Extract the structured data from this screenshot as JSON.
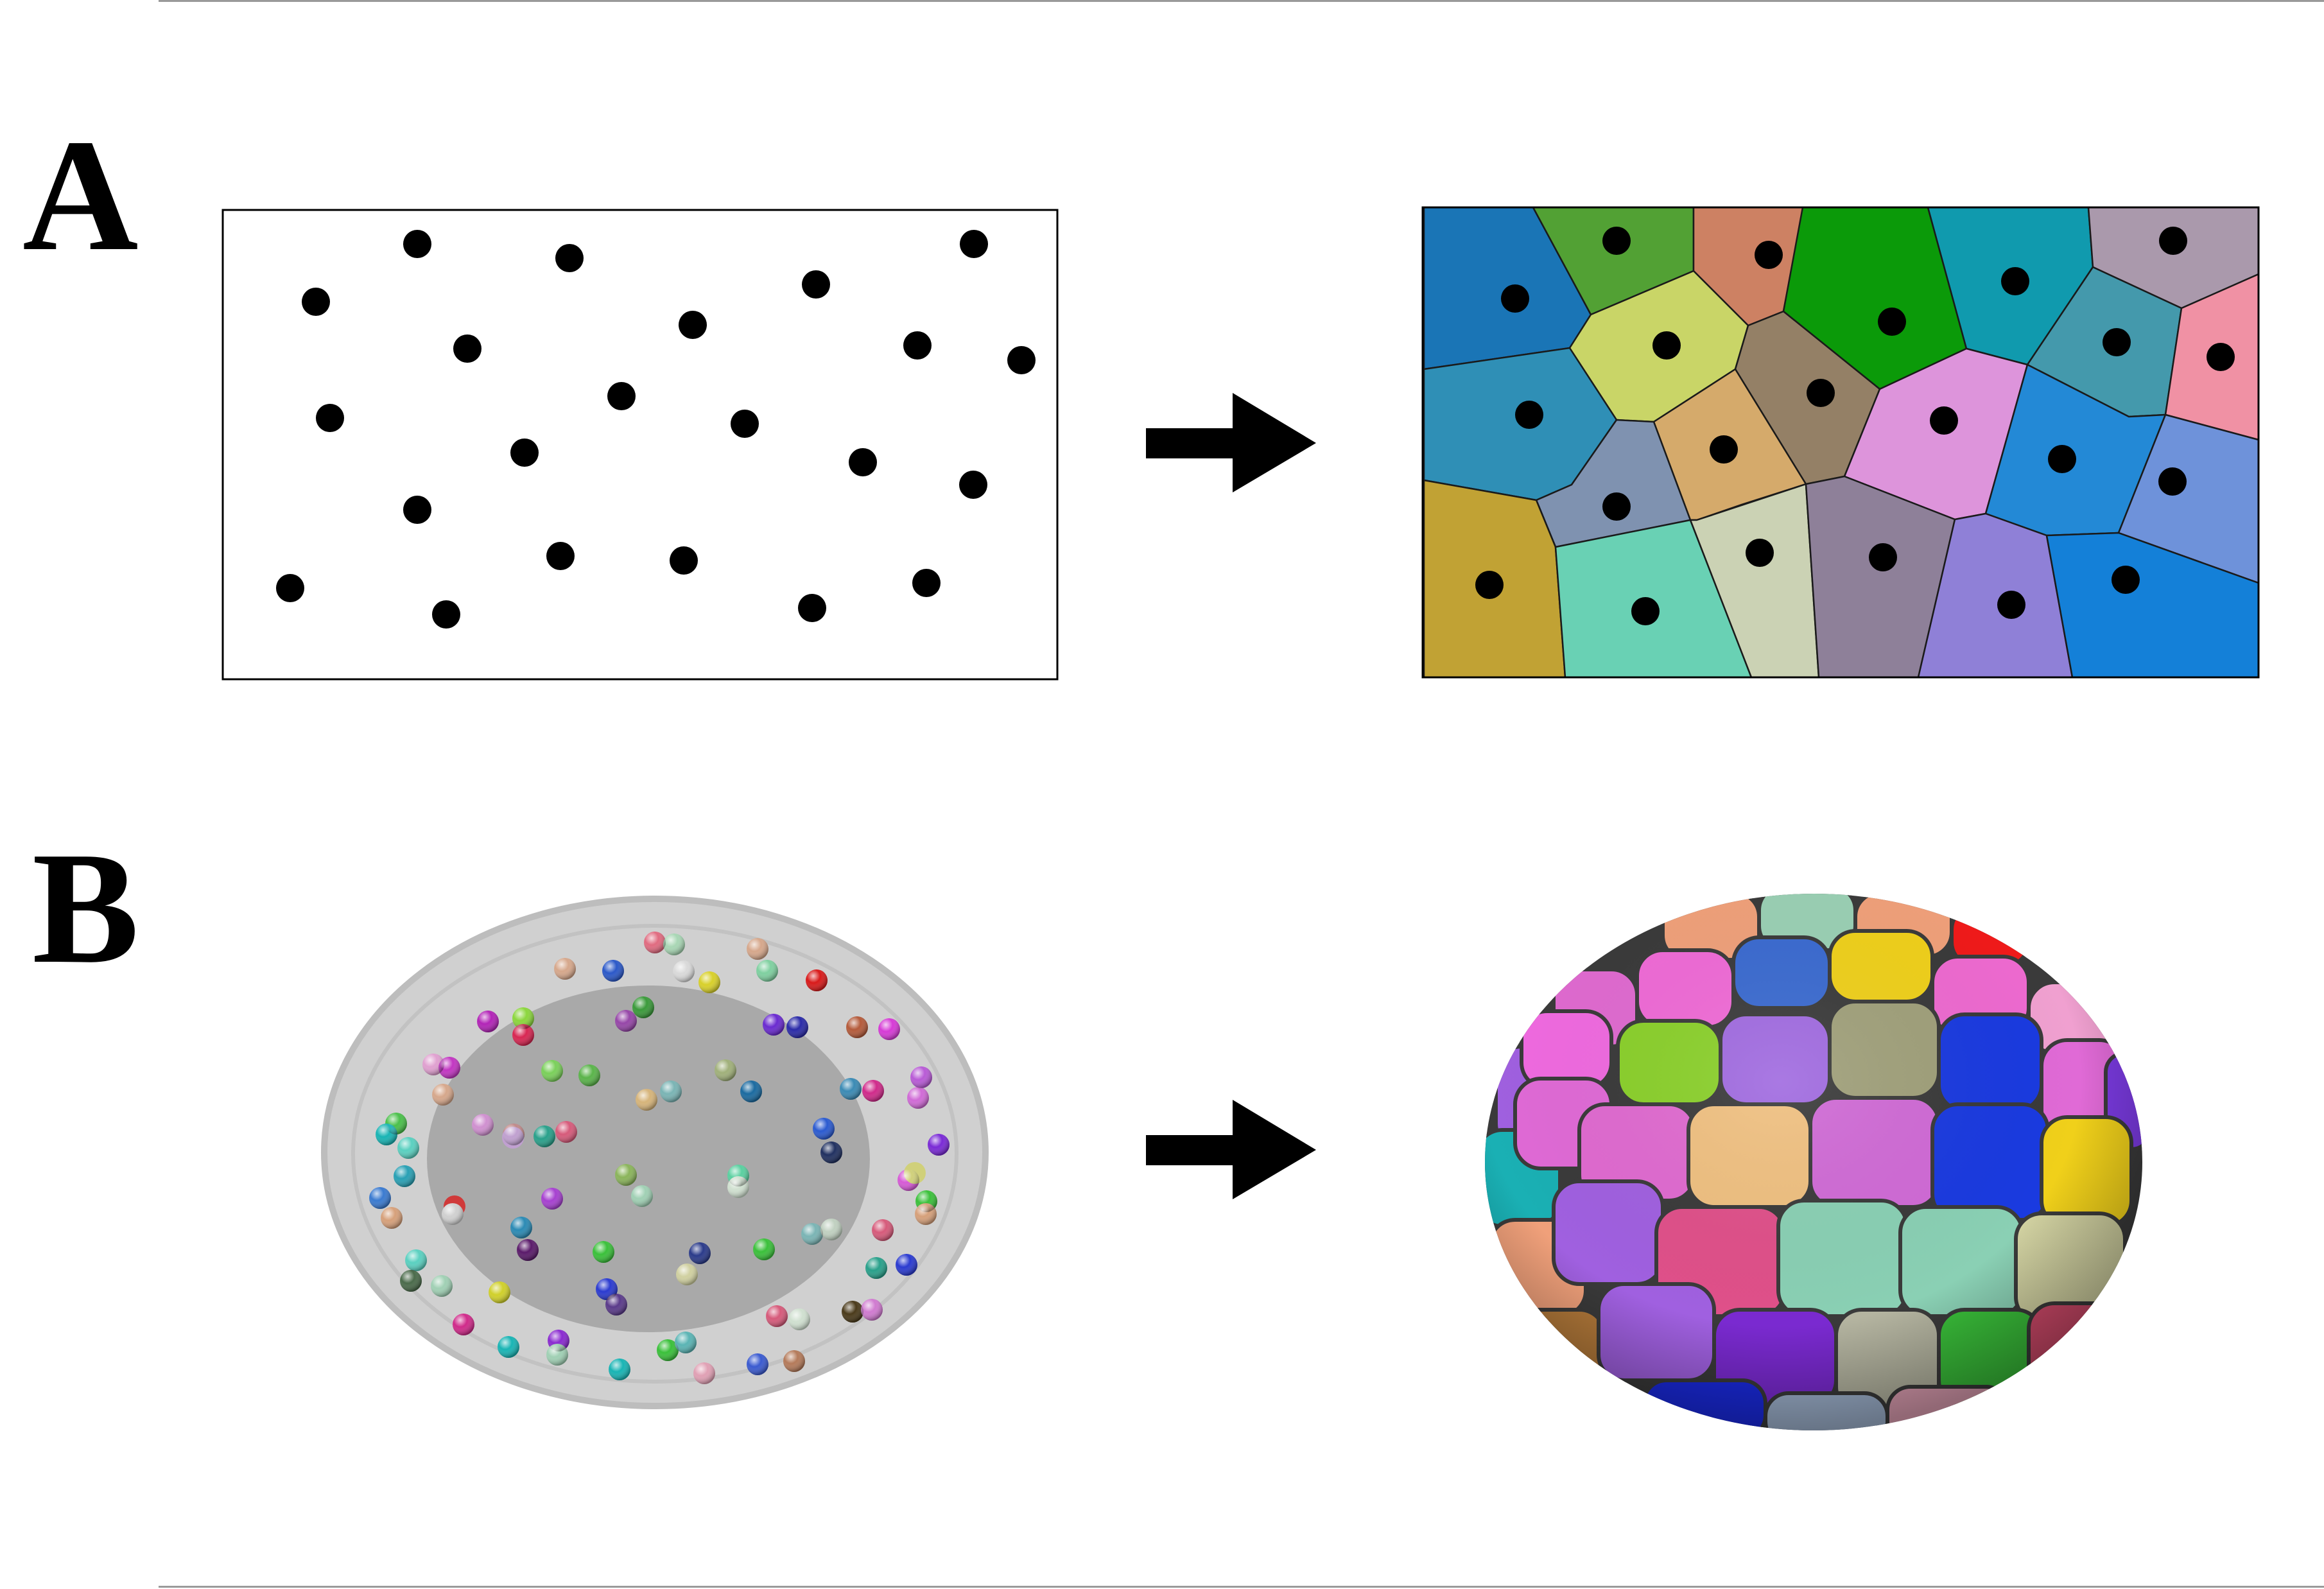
{
  "figure": {
    "panels": [
      {
        "label": "A",
        "left_view": "points",
        "right_view": "voronoi-cells"
      },
      {
        "label": "B",
        "left_view": "seed-spheres-in-shell",
        "right_view": "segmented-cell-mesh"
      }
    ],
    "colors": {
      "point": "#000000",
      "arrow": "#000000",
      "shell_outer": "#d0d0d0",
      "shell_inner": "#a9a9a9",
      "rule": "#9a9a9a"
    }
  }
}
